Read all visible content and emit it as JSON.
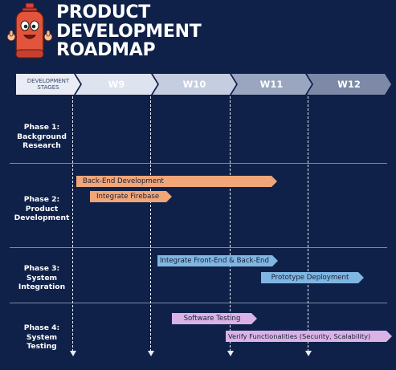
{
  "title": {
    "line1": "PRODUCT",
    "line2": "DEVELOPMENT",
    "line3": "ROADMAP"
  },
  "header": {
    "stages_label": [
      "DEVELOPMENT",
      "STAGES"
    ],
    "weeks": [
      "W9",
      "W10",
      "W11",
      "W12"
    ]
  },
  "phases": [
    {
      "lines": [
        "Phase 1:",
        "Background",
        "Research"
      ]
    },
    {
      "lines": [
        "Phase 2:",
        "Product",
        "Development"
      ]
    },
    {
      "lines": [
        "Phase 3:",
        "System",
        "Integration"
      ]
    },
    {
      "lines": [
        "Phase 4:",
        "System",
        "Testing"
      ]
    }
  ],
  "tasks": [
    {
      "label": "Back-End Development",
      "color": "#f0a679"
    },
    {
      "label": "Integrate Firebase",
      "color": "#f0a679"
    },
    {
      "label": "Integrate Front-End & Back-End",
      "color": "#7fb6e2"
    },
    {
      "label": "Prototype Deployment",
      "color": "#7fb6e2"
    },
    {
      "label": "Software Testing",
      "color": "#d9b3e6"
    },
    {
      "label": "Verify Functionalities (Security, Scalability)",
      "color": "#d9b3e6"
    }
  ],
  "colors": {
    "background": "#0f2148",
    "header_stages": "#e9ecf4",
    "header_w9": "#dde3ef",
    "header_w10": "#c5cde0",
    "header_w11": "#9aa6c0",
    "header_w12": "#7d89a6"
  },
  "icons": [
    "gas-cylinder-mascot-icon"
  ]
}
